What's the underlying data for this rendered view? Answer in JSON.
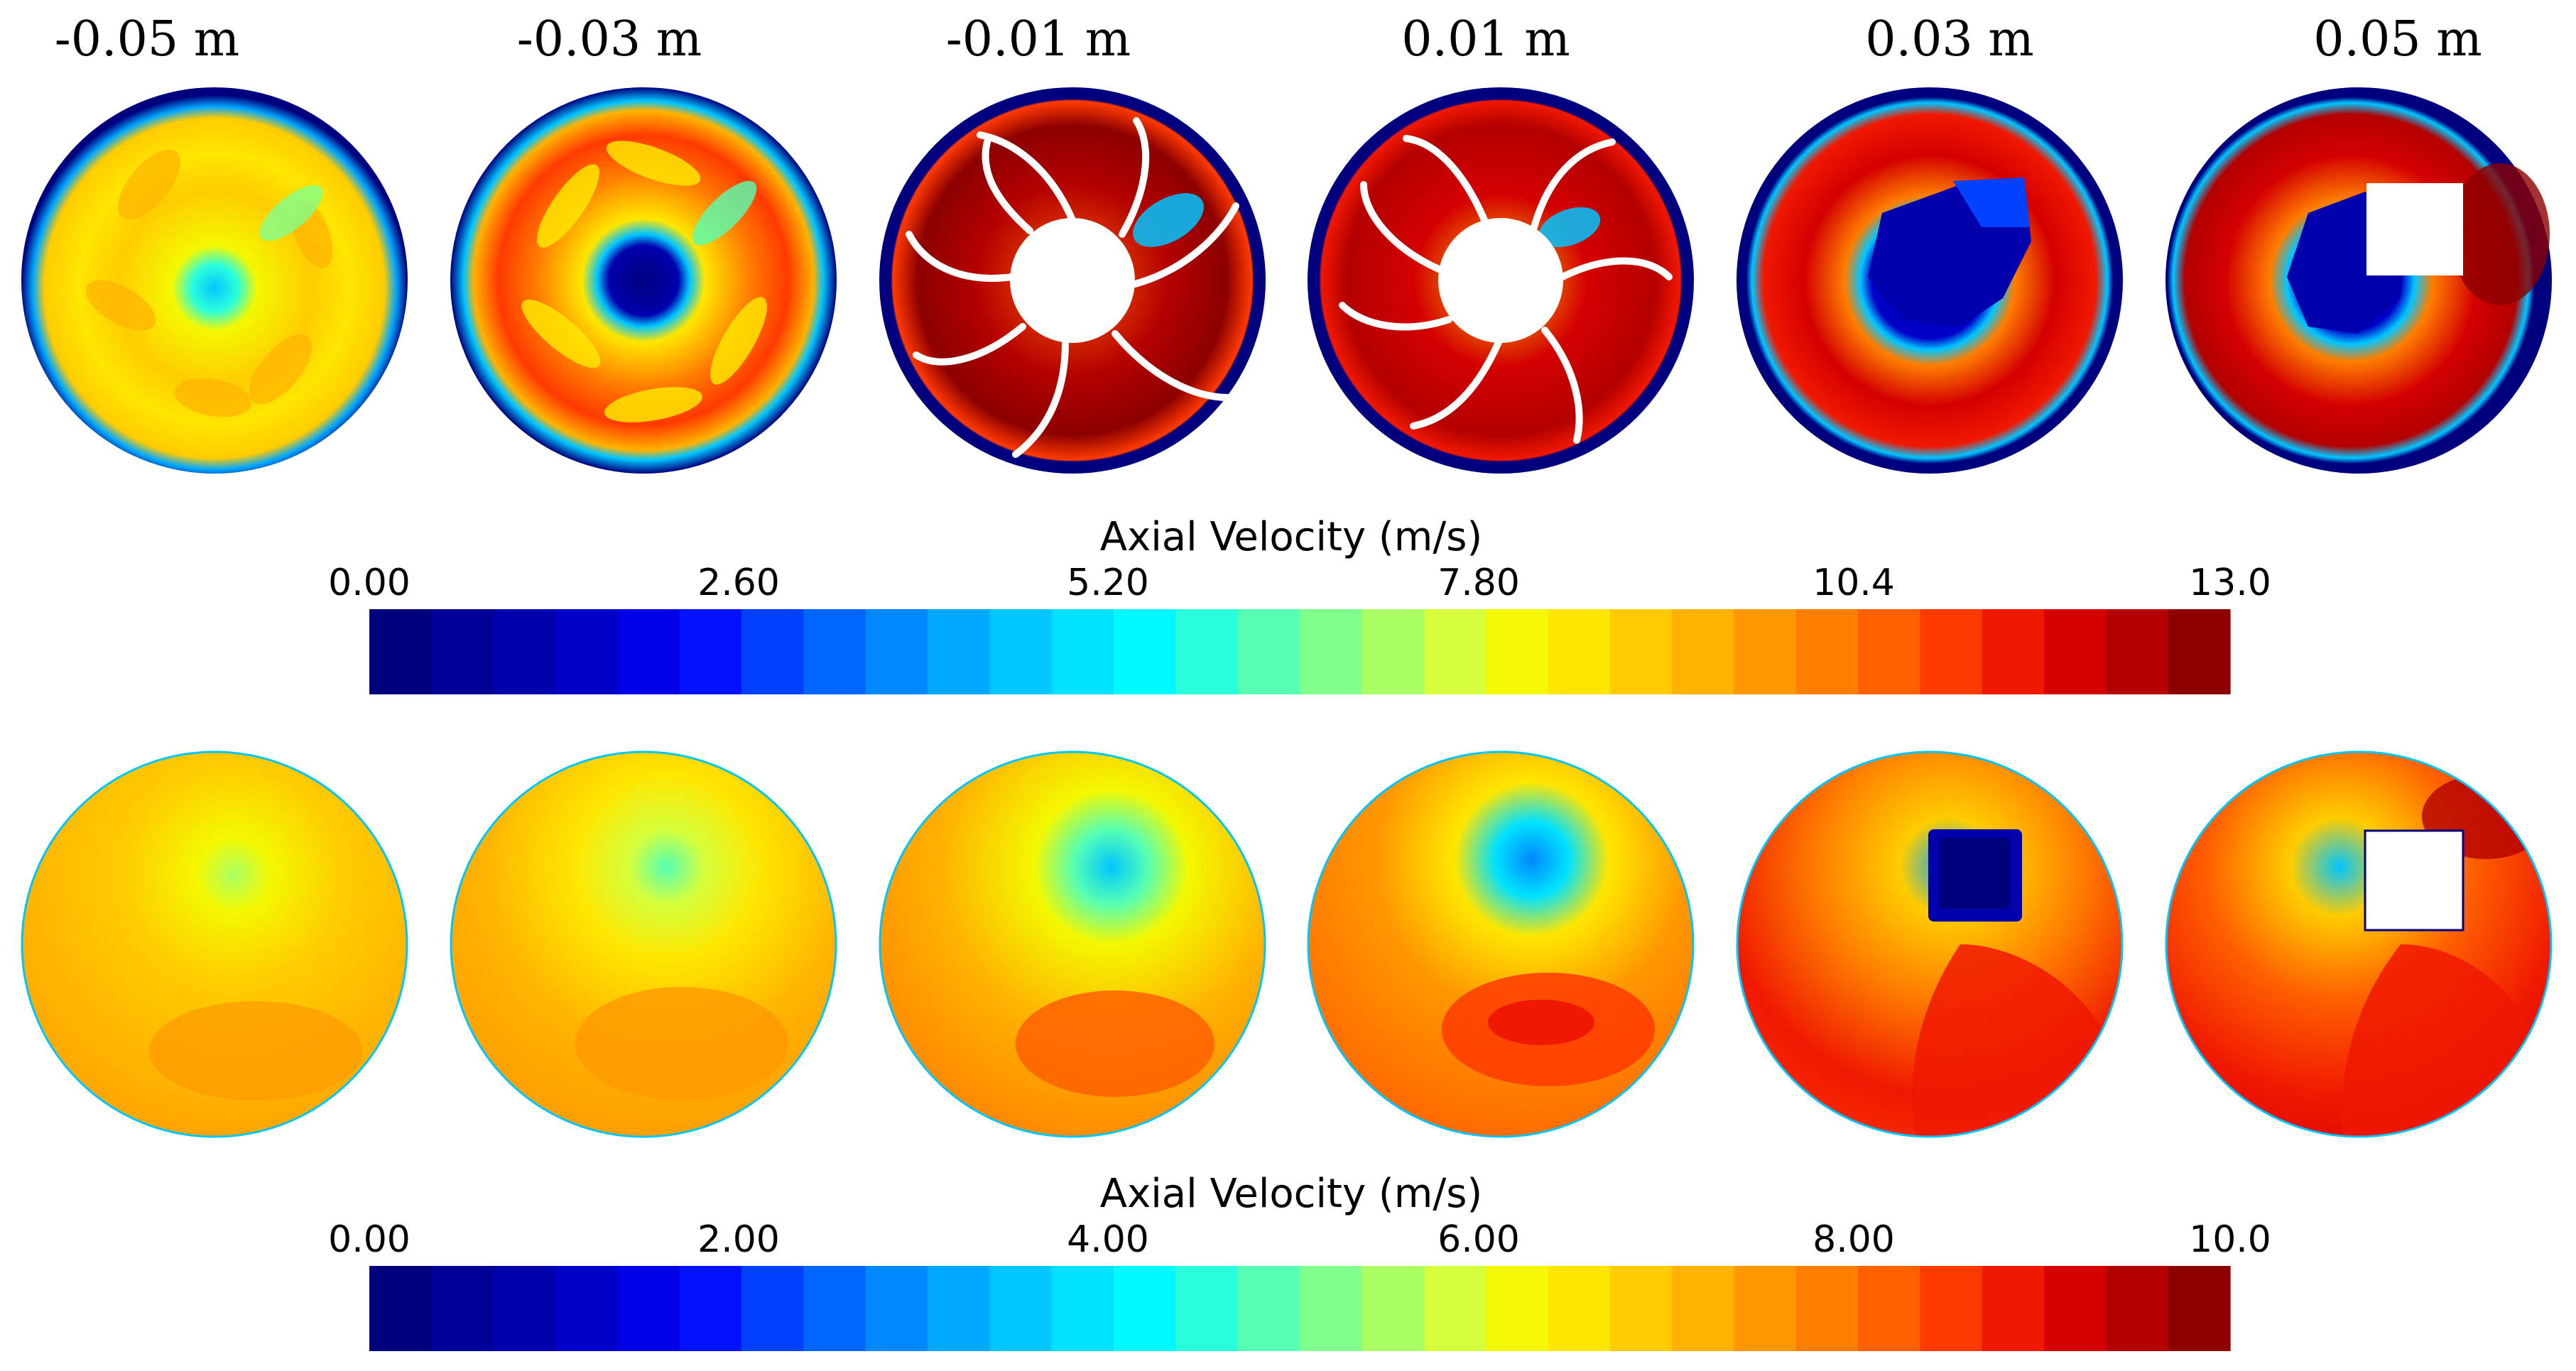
{
  "figure": {
    "top_row": {
      "position_labels": [
        "-0.05 m",
        "-0.03 m",
        "-0.01 m",
        "0.01 m",
        "0.03 m",
        "0.05 m"
      ]
    },
    "colorbar_top": {
      "title": "Axial Velocity (m/s)",
      "ticks": [
        "0.00",
        "2.60",
        "5.20",
        "7.80",
        "10.4",
        "13.0"
      ]
    },
    "colorbar_bottom": {
      "title": "Axial Velocity (m/s)",
      "ticks": [
        "0.00",
        "2.00",
        "4.00",
        "6.00",
        "8.00",
        "10.0"
      ]
    },
    "colormap": [
      "#00007f",
      "#000096",
      "#0000ad",
      "#0000c8",
      "#0000e6",
      "#0012ff",
      "#0040ff",
      "#0066ff",
      "#0088ff",
      "#00a8ff",
      "#00c6ff",
      "#00e2ff",
      "#00faff",
      "#2affdc",
      "#55ffb4",
      "#80ff8c",
      "#aaff64",
      "#d4ff3c",
      "#f4f800",
      "#ffe600",
      "#ffcc00",
      "#ffb200",
      "#ff9800",
      "#ff7e00",
      "#ff6000",
      "#ff3a00",
      "#f01800",
      "#d40000",
      "#b40000",
      "#8c0000"
    ]
  }
}
